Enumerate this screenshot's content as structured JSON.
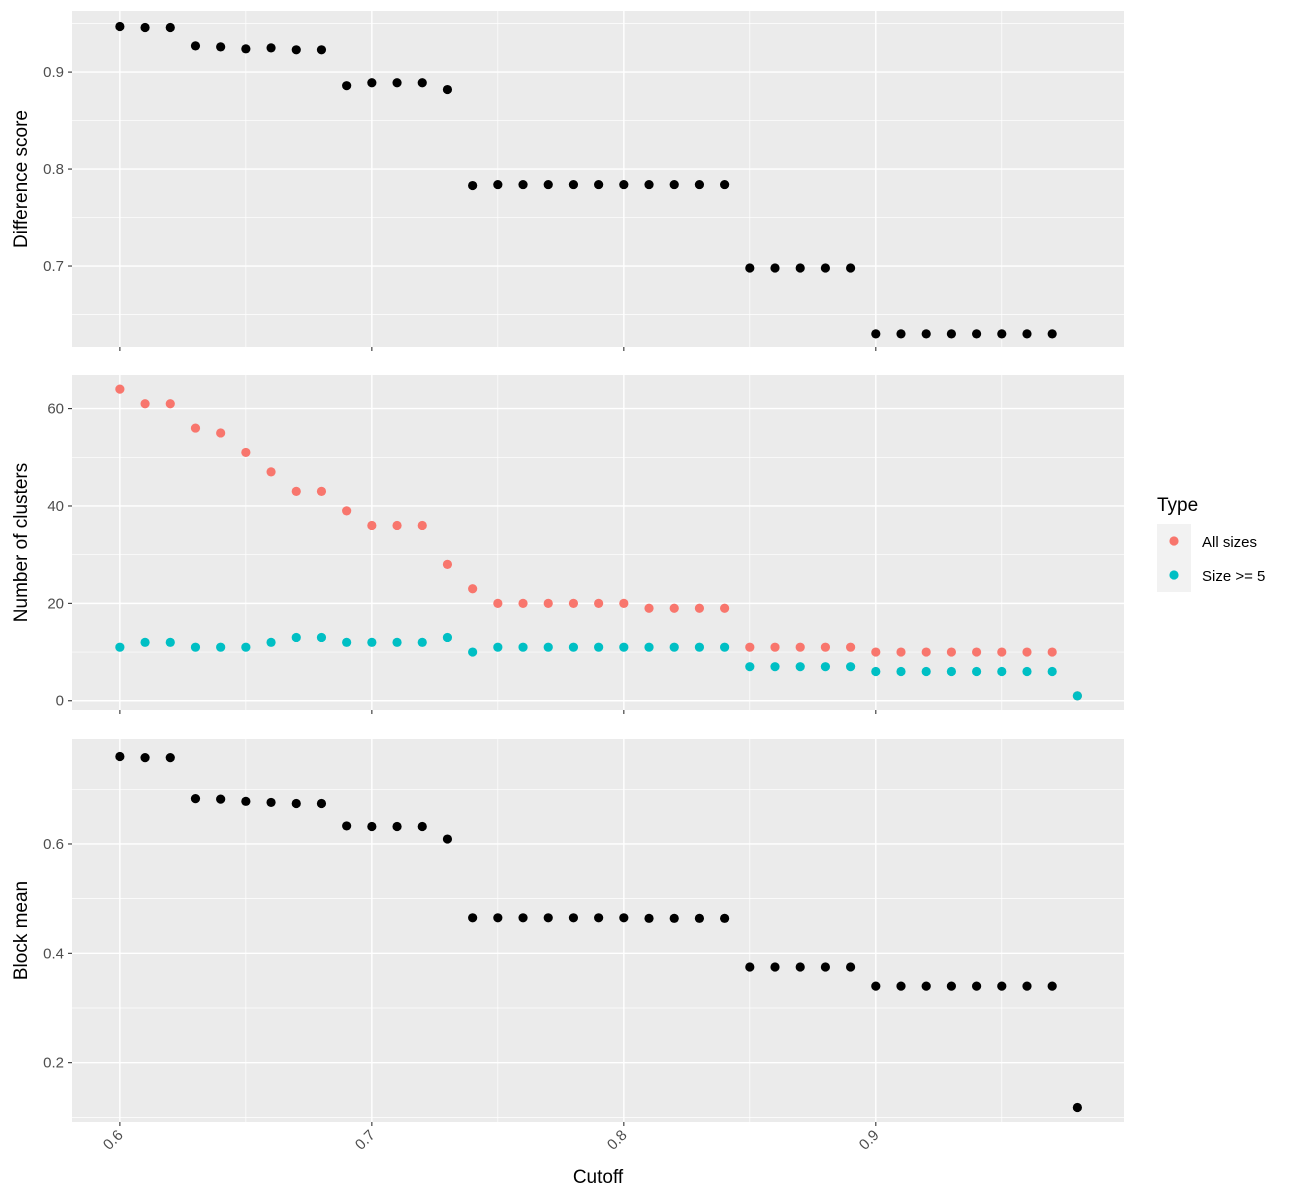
{
  "chart_data": [
    {
      "type": "scatter",
      "ylabel": "Difference score",
      "xlabel": "",
      "xlim": [
        0.581,
        0.9985
      ],
      "ylim": [
        0.6165,
        0.963
      ],
      "xticks": [
        0.6,
        0.7,
        0.8,
        0.9
      ],
      "yticks": [
        0.7,
        0.8,
        0.9
      ],
      "grid": true,
      "color": "#000000",
      "x": [
        0.6,
        0.61,
        0.62,
        0.63,
        0.64,
        0.65,
        0.66,
        0.67,
        0.68,
        0.69,
        0.7,
        0.71,
        0.72,
        0.73,
        0.74,
        0.75,
        0.76,
        0.77,
        0.78,
        0.79,
        0.8,
        0.81,
        0.82,
        0.83,
        0.84,
        0.85,
        0.86,
        0.87,
        0.88,
        0.89,
        0.9,
        0.91,
        0.92,
        0.93,
        0.94,
        0.95,
        0.96,
        0.97
      ],
      "y": [
        0.947,
        0.946,
        0.946,
        0.927,
        0.926,
        0.924,
        0.925,
        0.923,
        0.923,
        0.886,
        0.889,
        0.889,
        0.889,
        0.882,
        0.783,
        0.784,
        0.784,
        0.784,
        0.784,
        0.784,
        0.784,
        0.784,
        0.784,
        0.784,
        0.784,
        0.698,
        0.698,
        0.698,
        0.698,
        0.698,
        0.63,
        0.63,
        0.63,
        0.63,
        0.63,
        0.63,
        0.63,
        0.63
      ]
    },
    {
      "type": "scatter",
      "ylabel": "Number of clusters",
      "xlabel": "",
      "xlim": [
        0.581,
        0.9985
      ],
      "ylim": [
        -1.9,
        66.9
      ],
      "xticks": [
        0.6,
        0.7,
        0.8,
        0.9
      ],
      "yticks": [
        0,
        20,
        40,
        60
      ],
      "grid": true,
      "legend": {
        "title": "Type",
        "position": "right"
      },
      "x": [
        0.6,
        0.61,
        0.62,
        0.63,
        0.64,
        0.65,
        0.66,
        0.67,
        0.68,
        0.69,
        0.7,
        0.71,
        0.72,
        0.73,
        0.74,
        0.75,
        0.76,
        0.77,
        0.78,
        0.79,
        0.8,
        0.81,
        0.82,
        0.83,
        0.84,
        0.85,
        0.86,
        0.87,
        0.88,
        0.89,
        0.9,
        0.91,
        0.92,
        0.93,
        0.94,
        0.95,
        0.96,
        0.97,
        0.98
      ],
      "series": [
        {
          "name": "All sizes",
          "color": "#f8766d",
          "values": [
            64,
            61,
            61,
            56,
            55,
            51,
            47,
            43,
            43,
            39,
            36,
            36,
            36,
            28,
            23,
            20,
            20,
            20,
            20,
            20,
            20,
            19,
            19,
            19,
            19,
            11,
            11,
            11,
            11,
            11,
            10,
            10,
            10,
            10,
            10,
            10,
            10,
            10,
            1
          ]
        },
        {
          "name": "Size >= 5",
          "color": "#00bfc4",
          "values": [
            11,
            12,
            12,
            11,
            11,
            11,
            12,
            13,
            13,
            12,
            12,
            12,
            12,
            13,
            10,
            11,
            11,
            11,
            11,
            11,
            11,
            11,
            11,
            11,
            11,
            7,
            7,
            7,
            7,
            7,
            6,
            6,
            6,
            6,
            6,
            6,
            6,
            6,
            1
          ]
        }
      ]
    },
    {
      "type": "scatter",
      "ylabel": "Block mean",
      "xlabel": "Cutoff",
      "xlim": [
        0.581,
        0.9985
      ],
      "ylim": [
        0.0915,
        0.792
      ],
      "xticks": [
        0.6,
        0.7,
        0.8,
        0.9
      ],
      "yticks": [
        0.2,
        0.4,
        0.6
      ],
      "grid": true,
      "color": "#000000",
      "x": [
        0.6,
        0.61,
        0.62,
        0.63,
        0.64,
        0.65,
        0.66,
        0.67,
        0.68,
        0.69,
        0.7,
        0.71,
        0.72,
        0.73,
        0.74,
        0.75,
        0.76,
        0.77,
        0.78,
        0.79,
        0.8,
        0.81,
        0.82,
        0.83,
        0.84,
        0.85,
        0.86,
        0.87,
        0.88,
        0.89,
        0.9,
        0.91,
        0.92,
        0.93,
        0.94,
        0.95,
        0.96,
        0.97,
        0.98
      ],
      "y": [
        0.76,
        0.758,
        0.758,
        0.683,
        0.682,
        0.678,
        0.676,
        0.674,
        0.674,
        0.633,
        0.632,
        0.632,
        0.632,
        0.609,
        0.465,
        0.465,
        0.465,
        0.465,
        0.465,
        0.465,
        0.465,
        0.464,
        0.464,
        0.464,
        0.464,
        0.375,
        0.375,
        0.375,
        0.375,
        0.375,
        0.34,
        0.34,
        0.34,
        0.34,
        0.34,
        0.34,
        0.34,
        0.34,
        0.118
      ]
    }
  ]
}
